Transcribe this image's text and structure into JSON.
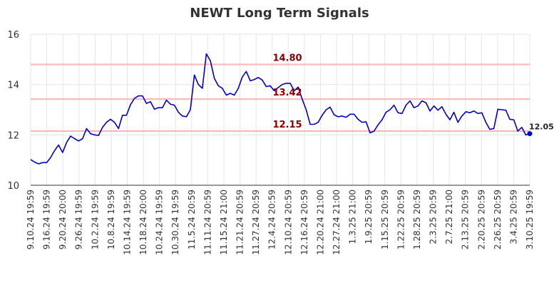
{
  "chart_data": {
    "type": "line",
    "title": "NEWT Long Term Signals",
    "xlabel": "",
    "ylabel": "",
    "ylim": [
      10,
      16
    ],
    "yticks": [
      "10",
      "12",
      "14",
      "16"
    ],
    "grid": true,
    "x_tick_labels": [
      "9.10.24 19:59",
      "9.16.24 19:59",
      "9.20.24 20:00",
      "9.26.24 19:59",
      "10.2.24 19:59",
      "10.8.24 19:59",
      "10.14.24 19:59",
      "10.18.24 20:00",
      "10.24.24 19:59",
      "10.30.24 19:59",
      "11.5.24 20:59",
      "11.11.24 20:59",
      "11.15.24 21:00",
      "11.21.24 20:59",
      "11.27.24 20:59",
      "12.4.24 20:59",
      "12.10.24 20:59",
      "12.16.24 20:59",
      "12.20.24 21:00",
      "12.27.24 21:00",
      "1.3.25 21:00",
      "1.9.25 20:59",
      "1.15.25 20:59",
      "1.22.25 20:59",
      "1.28.25 20:59",
      "2.3.25 20:59",
      "2.7.25 21:00",
      "2.13.25 20:59",
      "2.20.25 20:59",
      "2.26.25 20:59",
      "3.4.25 20:59",
      "3.10.25 19:59"
    ],
    "reference_lines": [
      {
        "label": "14.80",
        "value": 14.8
      },
      {
        "label": "13.42",
        "value": 13.42
      },
      {
        "label": "12.15",
        "value": 12.15
      }
    ],
    "last_value_label": "12.05",
    "series": [
      {
        "values": [
          11.02,
          10.92,
          10.85,
          10.9,
          10.9,
          11.1,
          11.38,
          11.6,
          11.3,
          11.7,
          11.95,
          11.85,
          11.76,
          11.85,
          12.25,
          12.05,
          12.0,
          11.98,
          12.3,
          12.5,
          12.62,
          12.5,
          12.25,
          12.78,
          12.78,
          13.2,
          13.45,
          13.55,
          13.55,
          13.25,
          13.32,
          13.02,
          13.08,
          13.08,
          13.38,
          13.22,
          13.18,
          12.9,
          12.75,
          12.72,
          13.0,
          14.38,
          14.0,
          13.85,
          15.22,
          14.95,
          14.25,
          13.95,
          13.85,
          13.58,
          13.65,
          13.58,
          13.85,
          14.3,
          14.52,
          14.15,
          14.2,
          14.28,
          14.18,
          13.92,
          13.95,
          13.75,
          13.88,
          14.0,
          14.05,
          14.05,
          13.75,
          13.9,
          13.42,
          13.0,
          12.42,
          12.42,
          12.5,
          12.78,
          13.0,
          13.1,
          12.8,
          12.72,
          12.75,
          12.7,
          12.82,
          12.82,
          12.62,
          12.5,
          12.52,
          12.08,
          12.15,
          12.4,
          12.6,
          12.9,
          13.0,
          13.18,
          12.88,
          12.85,
          13.18,
          13.35,
          13.08,
          13.15,
          13.35,
          13.28,
          12.95,
          13.15,
          12.98,
          13.12,
          12.82,
          12.6,
          12.9,
          12.5,
          12.75,
          12.92,
          12.88,
          12.95,
          12.85,
          12.88,
          12.5,
          12.22,
          12.25,
          13.02,
          13.0,
          12.98,
          12.62,
          12.6,
          12.15,
          12.3,
          12.0,
          12.05
        ],
        "color": "#0000cc"
      }
    ],
    "colors": {
      "line": "#0000cc",
      "reference_line": "#ffb3b3",
      "reference_label": "#8b0000",
      "grid": "#e6e6e6",
      "title": "#333333",
      "axis_text": "#333333",
      "last_point": "#0000cc"
    }
  }
}
